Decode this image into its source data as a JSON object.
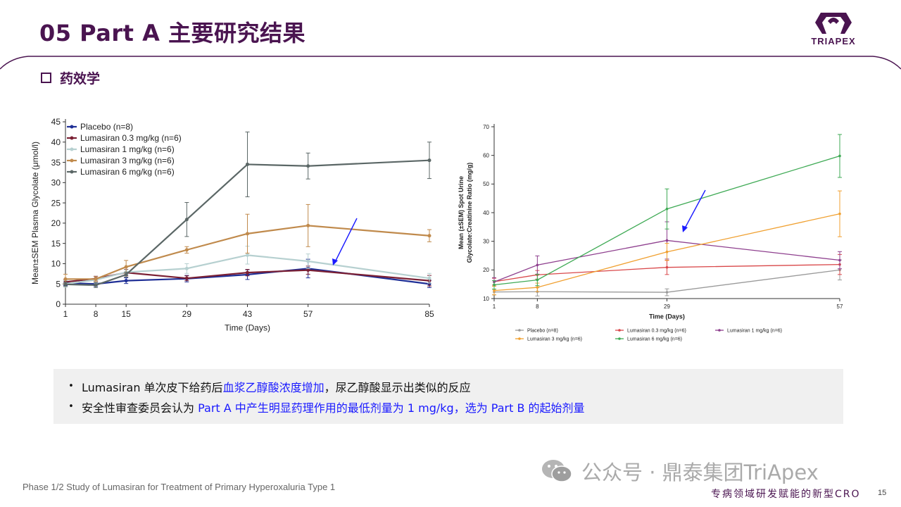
{
  "header": {
    "title": "05 Part A 主要研究结果",
    "logo_text": "TRIAPEX"
  },
  "section": {
    "title": "药效学"
  },
  "chart_data": [
    {
      "type": "line",
      "xlabel": "Time (Days)",
      "ylabel": "Mean±SEM Plasma Glycolate (μmol/l)",
      "x": [
        1,
        8,
        15,
        29,
        43,
        57,
        85
      ],
      "x_ticks": [
        "1",
        "8",
        "15",
        "29",
        "43",
        "57",
        "85"
      ],
      "xlim": [
        1,
        85
      ],
      "ylim": [
        0,
        45
      ],
      "y_ticks": [
        "0",
        "5",
        "10",
        "15",
        "20",
        "25",
        "30",
        "35",
        "40",
        "45"
      ],
      "legend_position": "top-left",
      "series": [
        {
          "name": "Placebo",
          "n_label": "(n=8)",
          "color": "#1f2f96",
          "values": [
            5.2,
            5.0,
            5.8,
            6.3,
            7.3,
            8.8,
            5.0
          ],
          "err": [
            0.6,
            0.6,
            0.7,
            0.8,
            1.2,
            2.3,
            0.9
          ]
        },
        {
          "name": "Lumasiran 0.3 mg/kg",
          "n_label": "(n=6)",
          "color": "#7a1f33",
          "values": [
            5.5,
            6.3,
            7.8,
            6.4,
            7.8,
            8.4,
            5.8
          ],
          "err": [
            0.6,
            0.6,
            0.8,
            0.6,
            0.8,
            1.0,
            1.3
          ]
        },
        {
          "name": "Lumasiran 1 mg/kg",
          "n_label": "(n=6)",
          "color": "#b6d0d0",
          "values": [
            5.0,
            6.0,
            7.9,
            8.8,
            12.1,
            10.6,
            6.4
          ],
          "err": [
            0.8,
            0.8,
            0.6,
            1.2,
            2.2,
            1.8,
            1.2
          ]
        },
        {
          "name": "Lumasiran 3 mg/kg",
          "n_label": "(n=6)",
          "color": "#c08a4c",
          "values": [
            6.2,
            6.2,
            9.2,
            13.4,
            17.4,
            19.4,
            16.9
          ],
          "err": [
            1.2,
            0.6,
            1.6,
            0.8,
            4.8,
            5.2,
            1.5
          ]
        },
        {
          "name": "Lumasiran 6 mg/kg",
          "n_label": "(n=6)",
          "color": "#5b6766",
          "values": [
            4.9,
            4.7,
            7.3,
            20.9,
            34.5,
            34.1,
            35.5
          ],
          "err": [
            0.5,
            0.6,
            0.6,
            4.2,
            8.0,
            3.2,
            4.5
          ]
        }
      ]
    },
    {
      "type": "line",
      "xlabel": "Time (Days)",
      "ylabel": "Mean (±SEM) Spot Urine Glycolate:Creatinine Ratio (mg/g)",
      "ylabel_lines": [
        "Mean (±SEM) Spot Urine",
        "Glycolate:Creatinine Ratio (mg/g)"
      ],
      "x": [
        1,
        8,
        29,
        57
      ],
      "x_ticks": [
        "1",
        "8",
        "29",
        "57"
      ],
      "xlim": [
        1,
        57
      ],
      "ylim": [
        10,
        70
      ],
      "y_ticks": [
        "10",
        "20",
        "30",
        "40",
        "50",
        "60",
        "70"
      ],
      "legend_position": "bottom",
      "series": [
        {
          "name": "Placebo",
          "n_label": "(n=8)",
          "color": "#9a9a9a",
          "values": [
            12.3,
            12.4,
            12.2,
            20.0
          ],
          "err": [
            1.0,
            1.5,
            1.2,
            3.5
          ]
        },
        {
          "name": "Lumasiran 0.3 mg/kg",
          "n_label": "(n=6)",
          "color": "#d9484a",
          "values": [
            15.9,
            18.3,
            20.9,
            21.9
          ],
          "err": [
            1.2,
            1.5,
            2.5,
            3.5
          ]
        },
        {
          "name": "Lumasiran 1 mg/kg",
          "n_label": "(n=6)",
          "color": "#8e3f8e",
          "values": [
            15.8,
            21.7,
            30.3,
            23.4
          ],
          "err": [
            1.5,
            3.2,
            6.5,
            3.0
          ]
        },
        {
          "name": "Lumasiran 3 mg/kg",
          "n_label": "(n=6)",
          "color": "#f0a030",
          "values": [
            12.8,
            13.9,
            26.3,
            39.6
          ],
          "err": [
            1.5,
            1.5,
            3.0,
            8.0
          ]
        },
        {
          "name": "Lumasiran 6 mg/kg",
          "n_label": "(n=6)",
          "color": "#3faa55",
          "values": [
            14.8,
            16.5,
            41.3,
            59.8
          ],
          "err": [
            1.5,
            2.0,
            7.0,
            7.5
          ]
        }
      ]
    }
  ],
  "bullets": [
    {
      "pre": "Lumasiran 单次皮下给药后",
      "hl": "血浆乙醇酸浓度增加",
      "post": "，尿乙醇酸显示出类似的反应"
    },
    {
      "pre": "安全性审查委员会认为 ",
      "hl": "Part A 中产生明显药理作用的最低剂量为 1 mg/kg，选为 Part B 的起始剂量",
      "post": ""
    }
  ],
  "footer": {
    "source": "Phase 1/2 Study of Lumasiran for Treatment of Primary Hyperoxaluria Type 1",
    "watermark": "公众号 · 鼎泰集团TriApex",
    "tagline": "专病领域研发赋能的新型CRO",
    "page": "15"
  },
  "colors": {
    "brand": "#4a1450",
    "highlight": "#1a1aff",
    "panel_bg": "#f0f0f0",
    "arrow": "#1a1aff"
  }
}
